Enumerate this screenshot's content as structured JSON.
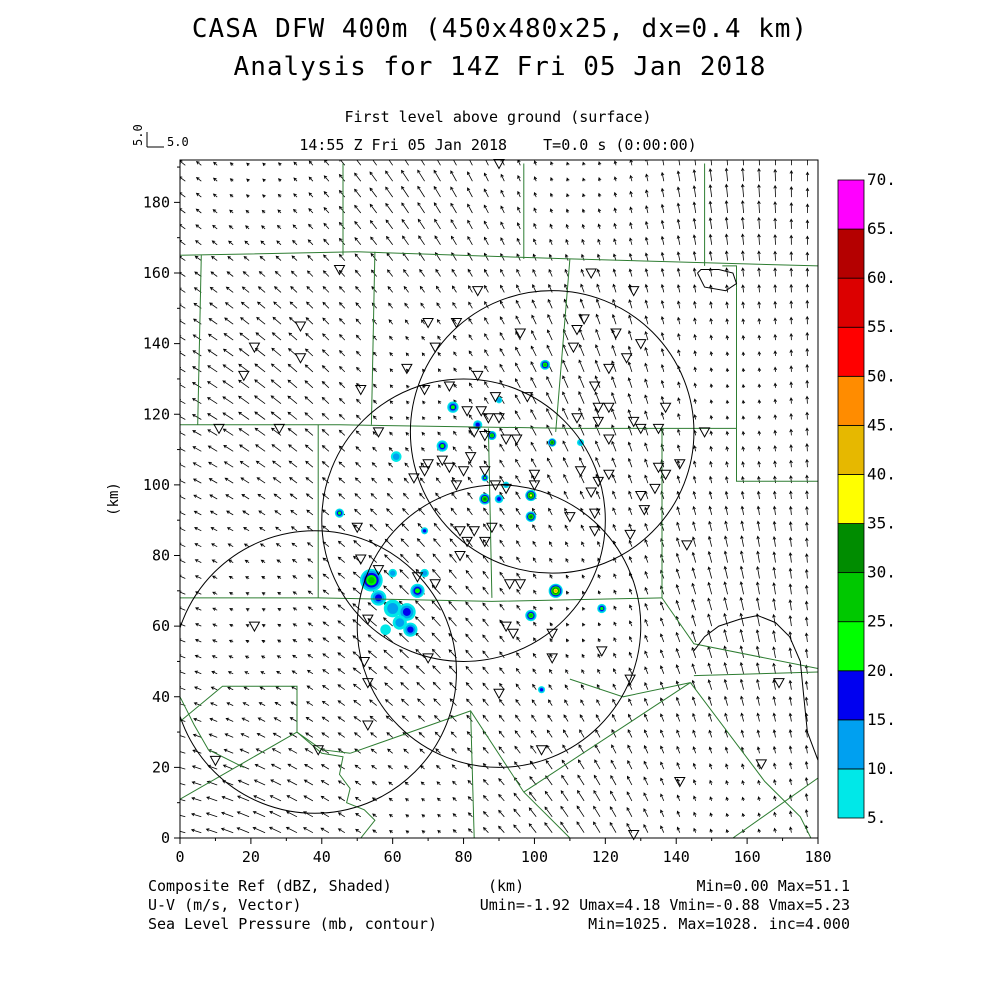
{
  "title": "CASA DFW 400m (450x480x25, dx=0.4 km)",
  "subtitle": "Analysis for 14Z Fri 05 Jan 2018",
  "level_label": "First level above ground (surface)",
  "time_label": "14:55 Z Fri 05 Jan 2018    T=0.0 s (0:00:00)",
  "vector_scale": {
    "vertical": "5.0",
    "horizontal": "5.0"
  },
  "xaxis": {
    "label": "(km)",
    "ticks": [
      0,
      20,
      40,
      60,
      80,
      100,
      120,
      140,
      160,
      180
    ],
    "range": [
      0,
      180
    ]
  },
  "yaxis": {
    "label": "(km)",
    "ticks": [
      0,
      20,
      40,
      60,
      80,
      100,
      120,
      140,
      160,
      180
    ],
    "range": [
      0,
      192
    ]
  },
  "colorbar": {
    "labels": [
      "5.",
      "10.",
      "15.",
      "20.",
      "25.",
      "30.",
      "35.",
      "40.",
      "45.",
      "50.",
      "55.",
      "60.",
      "65.",
      "70."
    ],
    "colors": [
      "#00e8e8",
      "#00a0f0",
      "#0000f0",
      "#00ff00",
      "#00c800",
      "#008c00",
      "#ffff00",
      "#e6b800",
      "#ff8c00",
      "#ff0000",
      "#dc0000",
      "#b40000",
      "#ff00ff"
    ]
  },
  "footer": {
    "ref_label": "Composite Ref (dBZ, Shaded)",
    "uv_label": "U-V (m/s, Vector)",
    "slp_label": "Sea Level Pressure (mb, contour)",
    "km_label": "(km)",
    "ref_stats": "Min=0.00 Max=51.1",
    "uv_stats": "Umin=-1.92 Umax=4.18 Vmin=-0.88 Vmax=5.23",
    "slp_stats": "Min=1025. Max=1028. inc=4.000"
  },
  "colors": {
    "county_lines": "#2e7d32",
    "vectors": "#000000",
    "contours": "#000000"
  },
  "radars": [
    {
      "name": "radar-1",
      "x": 80,
      "y": 90,
      "r": 40
    },
    {
      "name": "radar-2",
      "x": 105,
      "y": 115,
      "r": 40
    },
    {
      "name": "radar-3",
      "x": 38,
      "y": 47,
      "r": 40
    },
    {
      "name": "radar-4",
      "x": 90,
      "y": 60,
      "r": 40
    }
  ],
  "echoes": [
    {
      "x": 54,
      "y": 73,
      "r": 3.2,
      "dbz": 25
    },
    {
      "x": 56,
      "y": 68,
      "r": 2.2,
      "dbz": 15
    },
    {
      "x": 60,
      "y": 65,
      "r": 2.5,
      "dbz": 12
    },
    {
      "x": 64,
      "y": 64,
      "r": 2.5,
      "dbz": 15
    },
    {
      "x": 67,
      "y": 70,
      "r": 2.0,
      "dbz": 22
    },
    {
      "x": 62,
      "y": 61,
      "r": 2.0,
      "dbz": 10
    },
    {
      "x": 58,
      "y": 59,
      "r": 1.5,
      "dbz": 8
    },
    {
      "x": 65,
      "y": 59,
      "r": 2.0,
      "dbz": 15
    },
    {
      "x": 69,
      "y": 75,
      "r": 1.2,
      "dbz": 10
    },
    {
      "x": 60,
      "y": 75,
      "r": 1.2,
      "dbz": 10
    },
    {
      "x": 45,
      "y": 92,
      "r": 1.3,
      "dbz": 20
    },
    {
      "x": 61,
      "y": 108,
      "r": 1.5,
      "dbz": 12
    },
    {
      "x": 69,
      "y": 87,
      "r": 1.0,
      "dbz": 15
    },
    {
      "x": 74,
      "y": 111,
      "r": 1.6,
      "dbz": 22
    },
    {
      "x": 77,
      "y": 122,
      "r": 1.6,
      "dbz": 22
    },
    {
      "x": 84,
      "y": 117,
      "r": 1.3,
      "dbz": 15
    },
    {
      "x": 88,
      "y": 114,
      "r": 1.3,
      "dbz": 25
    },
    {
      "x": 86,
      "y": 96,
      "r": 1.6,
      "dbz": 30
    },
    {
      "x": 86,
      "y": 102,
      "r": 1.0,
      "dbz": 20
    },
    {
      "x": 90,
      "y": 96,
      "r": 1.2,
      "dbz": 15
    },
    {
      "x": 99,
      "y": 97,
      "r": 1.6,
      "dbz": 35
    },
    {
      "x": 99,
      "y": 91,
      "r": 1.5,
      "dbz": 30
    },
    {
      "x": 103,
      "y": 134,
      "r": 1.4,
      "dbz": 25
    },
    {
      "x": 105,
      "y": 112,
      "r": 1.2,
      "dbz": 30
    },
    {
      "x": 106,
      "y": 70,
      "r": 2.0,
      "dbz": 40
    },
    {
      "x": 99,
      "y": 63,
      "r": 1.6,
      "dbz": 25
    },
    {
      "x": 119,
      "y": 65,
      "r": 1.3,
      "dbz": 20
    },
    {
      "x": 102,
      "y": 42,
      "r": 1.0,
      "dbz": 15
    },
    {
      "x": 113,
      "y": 112,
      "r": 1.0,
      "dbz": 10
    },
    {
      "x": 90,
      "y": 124,
      "r": 0.9,
      "dbz": 10
    },
    {
      "x": 92,
      "y": 100,
      "r": 0.9,
      "dbz": 10
    }
  ],
  "stations": [
    [
      90,
      191
    ],
    [
      45,
      161
    ],
    [
      116,
      160
    ],
    [
      128,
      155
    ],
    [
      84,
      155
    ],
    [
      34,
      145
    ],
    [
      70,
      146
    ],
    [
      78,
      146
    ],
    [
      96,
      143
    ],
    [
      112,
      144
    ],
    [
      114,
      147
    ],
    [
      123,
      143
    ],
    [
      21,
      139
    ],
    [
      72,
      139
    ],
    [
      111,
      139
    ],
    [
      126,
      136
    ],
    [
      130,
      140
    ],
    [
      34,
      136
    ],
    [
      18,
      131
    ],
    [
      64,
      133
    ],
    [
      84,
      131
    ],
    [
      121,
      133
    ],
    [
      117,
      128
    ],
    [
      51,
      127
    ],
    [
      69,
      127
    ],
    [
      76,
      128
    ],
    [
      89,
      125
    ],
    [
      98,
      125
    ],
    [
      118,
      122
    ],
    [
      121,
      122
    ],
    [
      81,
      121
    ],
    [
      85,
      121
    ],
    [
      87,
      119
    ],
    [
      90,
      119
    ],
    [
      112,
      119
    ],
    [
      118,
      118
    ],
    [
      128,
      118
    ],
    [
      137,
      122
    ],
    [
      11,
      116
    ],
    [
      28,
      116
    ],
    [
      56,
      115
    ],
    [
      83,
      115
    ],
    [
      86,
      114
    ],
    [
      92,
      113
    ],
    [
      95,
      113
    ],
    [
      121,
      113
    ],
    [
      130,
      116
    ],
    [
      135,
      116
    ],
    [
      148,
      115
    ],
    [
      82,
      108
    ],
    [
      74,
      107
    ],
    [
      70,
      106
    ],
    [
      76,
      105
    ],
    [
      80,
      104
    ],
    [
      86,
      104
    ],
    [
      100,
      103
    ],
    [
      113,
      104
    ],
    [
      121,
      103
    ],
    [
      135,
      105
    ],
    [
      141,
      106
    ],
    [
      137,
      103
    ],
    [
      69,
      104
    ],
    [
      66,
      102
    ],
    [
      78,
      100
    ],
    [
      89,
      100
    ],
    [
      92,
      99
    ],
    [
      100,
      100
    ],
    [
      118,
      101
    ],
    [
      130,
      97
    ],
    [
      134,
      99
    ],
    [
      116,
      98
    ],
    [
      117,
      92
    ],
    [
      131,
      93
    ],
    [
      50,
      88
    ],
    [
      79,
      87
    ],
    [
      83,
      87
    ],
    [
      81,
      84
    ],
    [
      86,
      84
    ],
    [
      88,
      88
    ],
    [
      110,
      91
    ],
    [
      117,
      87
    ],
    [
      127,
      86
    ],
    [
      143,
      83
    ],
    [
      79,
      80
    ],
    [
      51,
      79
    ],
    [
      56,
      76
    ],
    [
      67,
      74
    ],
    [
      72,
      72
    ],
    [
      93,
      72
    ],
    [
      96,
      72
    ],
    [
      53,
      62
    ],
    [
      21,
      60
    ],
    [
      92,
      60
    ],
    [
      94,
      58
    ],
    [
      105,
      58
    ],
    [
      119,
      53
    ],
    [
      105,
      51
    ],
    [
      70,
      51
    ],
    [
      52,
      50
    ],
    [
      127,
      45
    ],
    [
      53,
      44
    ],
    [
      90,
      41
    ],
    [
      169,
      44
    ],
    [
      53,
      32
    ],
    [
      39,
      25
    ],
    [
      102,
      25
    ],
    [
      10,
      22
    ],
    [
      164,
      21
    ],
    [
      141,
      16
    ],
    [
      128,
      1
    ]
  ],
  "counties": [
    [
      [
        0,
        165
      ],
      [
        50,
        166
      ],
      [
        110,
        164
      ],
      [
        180,
        162
      ]
    ],
    [
      [
        46,
        191
      ],
      [
        46,
        165
      ]
    ],
    [
      [
        97,
        191
      ],
      [
        97,
        164
      ]
    ],
    [
      [
        148,
        191
      ],
      [
        148,
        162
      ]
    ],
    [
      [
        0,
        117
      ],
      [
        45,
        117
      ],
      [
        110,
        116
      ],
      [
        157,
        116
      ]
    ],
    [
      [
        6,
        165
      ],
      [
        5,
        117
      ]
    ],
    [
      [
        55,
        166
      ],
      [
        54,
        117
      ]
    ],
    [
      [
        110,
        164
      ],
      [
        106,
        115
      ]
    ],
    [
      [
        157,
        156
      ],
      [
        157,
        116
      ]
    ],
    [
      [
        153,
        162
      ],
      [
        157,
        162
      ],
      [
        157,
        156
      ]
    ],
    [
      [
        39,
        117
      ],
      [
        39,
        68
      ]
    ],
    [
      [
        87,
        116
      ],
      [
        88,
        68
      ]
    ],
    [
      [
        136,
        116
      ],
      [
        136,
        68
      ]
    ],
    [
      [
        157,
        116
      ],
      [
        157,
        101
      ],
      [
        180,
        101
      ]
    ],
    [
      [
        0,
        68
      ],
      [
        39,
        68
      ],
      [
        88,
        67
      ],
      [
        136,
        68
      ]
    ],
    [
      [
        136,
        68
      ],
      [
        145,
        55
      ],
      [
        180,
        48
      ]
    ],
    [
      [
        145,
        46
      ],
      [
        180,
        47
      ]
    ],
    [
      [
        0,
        33
      ],
      [
        12,
        43
      ],
      [
        33,
        43
      ],
      [
        33,
        30
      ],
      [
        40,
        25
      ],
      [
        48,
        24
      ]
    ],
    [
      [
        0,
        40
      ],
      [
        4,
        32
      ],
      [
        8,
        25
      ],
      [
        18,
        20
      ]
    ],
    [
      [
        0,
        11
      ],
      [
        33,
        30
      ]
    ],
    [
      [
        33,
        30
      ],
      [
        40,
        24
      ],
      [
        46,
        23
      ],
      [
        45,
        18
      ],
      [
        48,
        14
      ],
      [
        47,
        10
      ],
      [
        52,
        8
      ],
      [
        55,
        5
      ],
      [
        51,
        0
      ]
    ],
    [
      [
        48,
        24
      ],
      [
        82,
        36
      ],
      [
        97,
        13
      ],
      [
        110,
        0
      ]
    ],
    [
      [
        82,
        36
      ],
      [
        83,
        0
      ]
    ],
    [
      [
        97,
        13
      ],
      [
        144,
        44
      ]
    ],
    [
      [
        144,
        44
      ],
      [
        165,
        16
      ],
      [
        175,
        6
      ],
      [
        178,
        0
      ]
    ],
    [
      [
        156,
        0
      ],
      [
        180,
        17
      ]
    ],
    [
      [
        110,
        45
      ],
      [
        125,
        40
      ],
      [
        144,
        44
      ]
    ]
  ],
  "contours": [
    [
      [
        145,
        53
      ],
      [
        148,
        57
      ],
      [
        152,
        60
      ],
      [
        158,
        62
      ],
      [
        163,
        63
      ],
      [
        168,
        61
      ],
      [
        172,
        57
      ],
      [
        175,
        50
      ],
      [
        176,
        40
      ],
      [
        177,
        30
      ],
      [
        180,
        22
      ]
    ],
    [
      [
        146,
        160
      ],
      [
        148,
        156
      ],
      [
        154,
        155
      ],
      [
        157,
        157
      ],
      [
        156,
        160
      ],
      [
        152,
        161
      ],
      [
        147,
        161
      ],
      [
        146,
        160
      ]
    ]
  ]
}
